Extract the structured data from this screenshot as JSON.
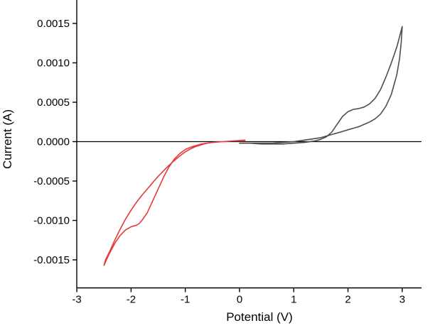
{
  "figure": {
    "background": "#ffffff"
  },
  "chart_data": {
    "type": "line",
    "title": "",
    "xlabel": "Potential (V)",
    "ylabel": "Current (A)",
    "xlim": [
      -3,
      3
    ],
    "ylim": [
      -0.00185,
      0.0018
    ],
    "xticks": [
      -3,
      -2,
      -1,
      0,
      1,
      2,
      3
    ],
    "yticks": [
      -0.0015,
      -0.001,
      -0.0005,
      0.0,
      0.0005,
      0.001,
      0.0015
    ],
    "grid": false,
    "legend": false,
    "axis_color": "#000000",
    "annotations": [
      "horizontal zero-current baseline at y = 0 spanning full plot width"
    ],
    "series": [
      {
        "name": "cathodic-scan-red",
        "color": "#e8393a",
        "x": [
          0.1,
          -0.1,
          -0.3,
          -0.5,
          -0.7,
          -0.9,
          -1.0,
          -1.1,
          -1.2,
          -1.3,
          -1.4,
          -1.5,
          -1.6,
          -1.7,
          -1.8,
          -1.85,
          -1.9,
          -1.95,
          -2.0,
          -2.1,
          -2.2,
          -2.3,
          -2.4,
          -2.5,
          -2.47,
          -2.4,
          -2.3,
          -2.2,
          -2.1,
          -2.0,
          -1.9,
          -1.8,
          -1.7,
          -1.6,
          -1.5,
          -1.4,
          -1.3,
          -1.2,
          -1.1,
          -1.0,
          -0.9,
          -0.8,
          -0.7,
          -0.6,
          -0.5,
          -0.3,
          -0.1,
          0.1
        ],
        "y": [
          2e-05,
          1e-05,
          0.0,
          -1e-05,
          -3e-05,
          -7e-05,
          -0.0001,
          -0.00015,
          -0.00022,
          -0.00032,
          -0.00045,
          -0.0006,
          -0.00075,
          -0.0009,
          -0.001,
          -0.00104,
          -0.00106,
          -0.00107,
          -0.00108,
          -0.00112,
          -0.00119,
          -0.00129,
          -0.00142,
          -0.00157,
          -0.0015,
          -0.0014,
          -0.00125,
          -0.00111,
          -0.00098,
          -0.00087,
          -0.00077,
          -0.00068,
          -0.0006,
          -0.00052,
          -0.00044,
          -0.00037,
          -0.0003,
          -0.00024,
          -0.00018,
          -0.00013,
          -9e-05,
          -6e-05,
          -4e-05,
          -2e-05,
          -1e-05,
          0.0,
          1e-05,
          1e-05
        ]
      },
      {
        "name": "anodic-scan-gray",
        "color": "#4d4d4d",
        "x": [
          0.0,
          0.2,
          0.4,
          0.6,
          0.8,
          1.0,
          1.2,
          1.4,
          1.5,
          1.6,
          1.7,
          1.8,
          1.9,
          2.0,
          2.1,
          2.2,
          2.3,
          2.4,
          2.5,
          2.6,
          2.7,
          2.8,
          2.9,
          2.95,
          3.0,
          2.98,
          2.95,
          2.9,
          2.8,
          2.7,
          2.6,
          2.5,
          2.4,
          2.3,
          2.2,
          2.1,
          2.0,
          1.9,
          1.8,
          1.7,
          1.6,
          1.5,
          1.4,
          1.2,
          1.0,
          0.8,
          0.6,
          0.4,
          0.2,
          0.0
        ],
        "y": [
          -2e-05,
          -2e-05,
          -3e-05,
          -3e-05,
          -3e-05,
          -2e-05,
          -1e-05,
          1e-05,
          3e-05,
          6e-05,
          0.00012,
          0.00022,
          0.00032,
          0.00038,
          0.00041,
          0.00042,
          0.00044,
          0.00048,
          0.00055,
          0.00066,
          0.00082,
          0.001,
          0.0012,
          0.00133,
          0.00146,
          0.00125,
          0.00105,
          0.00085,
          0.0006,
          0.00045,
          0.00035,
          0.00029,
          0.00025,
          0.00022,
          0.00019,
          0.00017,
          0.00015,
          0.00013,
          0.00011,
          9e-05,
          7e-05,
          5e-05,
          4e-05,
          2e-05,
          0.0,
          -1e-05,
          -2e-05,
          -2e-05,
          -2e-05,
          -2e-05
        ]
      }
    ]
  }
}
